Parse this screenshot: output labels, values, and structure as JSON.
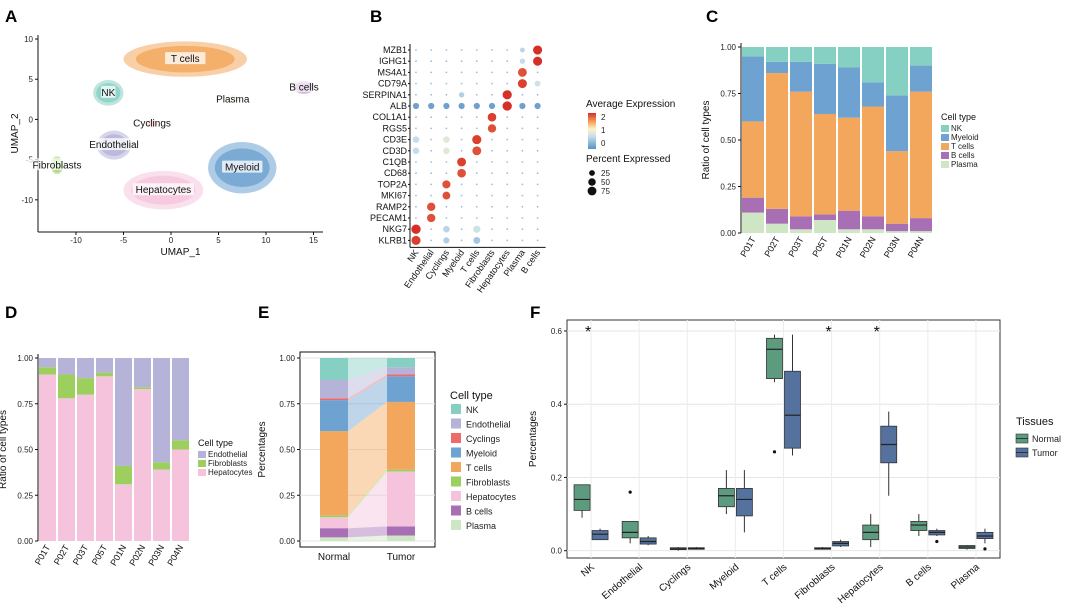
{
  "colors": {
    "NK": "#86cfc3",
    "Endothelial": "#b5b3d8",
    "Cyclings": "#ef6a6a",
    "Myeloid": "#6ea2d1",
    "T cells": "#f3a75c",
    "Fibroblasts": "#9ccf5e",
    "Hepatocytes": "#f5c4dc",
    "B cells": "#a86fb5",
    "Plasma": "#cfe6c4",
    "Normal": "#5d9b7e",
    "Tumor": "#55729f"
  },
  "panel_labels": [
    "A",
    "B",
    "C",
    "D",
    "E",
    "F"
  ],
  "chart_data": [
    {
      "id": "A",
      "type": "scatter",
      "title": "",
      "xlabel": "UMAP_1",
      "ylabel": "UMAP_2",
      "xlim": [
        -14,
        16
      ],
      "ylim": [
        -14,
        10.5
      ],
      "xticks": [
        -10,
        -5,
        0,
        5,
        10,
        15
      ],
      "yticks": [
        10,
        5,
        0,
        -5,
        -10
      ],
      "clusters": [
        {
          "name": "T cells",
          "cx": 1.5,
          "cy": 7.5,
          "rx": 6.5,
          "ry": 2.2
        },
        {
          "name": "NK",
          "cx": -6.6,
          "cy": 3.3,
          "rx": 1.6,
          "ry": 1.6
        },
        {
          "name": "B cells",
          "cx": 14.0,
          "cy": 4.0,
          "rx": 1.2,
          "ry": 0.8
        },
        {
          "name": "Plasma",
          "cx": 6.5,
          "cy": 2.5,
          "rx": 0.7,
          "ry": 0.6
        },
        {
          "name": "Cyclings",
          "cx": -2.0,
          "cy": -0.5,
          "rx": 0.6,
          "ry": 0.5
        },
        {
          "name": "Endothelial",
          "cx": -6.0,
          "cy": -3.2,
          "rx": 1.8,
          "ry": 1.8
        },
        {
          "name": "Fibroblasts",
          "cx": -12.0,
          "cy": -5.7,
          "rx": 0.7,
          "ry": 1.1
        },
        {
          "name": "Myeloid",
          "cx": 7.5,
          "cy": -6.0,
          "rx": 3.6,
          "ry": 3.2
        },
        {
          "name": "Hepatocytes",
          "cx": -0.8,
          "cy": -8.8,
          "rx": 4.2,
          "ry": 2.4
        }
      ]
    },
    {
      "id": "B",
      "type": "scatter",
      "title": "",
      "genes": [
        "MZB1",
        "IGHG1",
        "MS4A1",
        "CD79A",
        "SERPINA1",
        "ALB",
        "COL1A1",
        "RGS5",
        "CD3E",
        "CD3D",
        "C1QB",
        "CD68",
        "TOP2A",
        "MKI67",
        "RAMP2",
        "PECAM1",
        "NKG7",
        "KLRB1"
      ],
      "cell_types": [
        "NK",
        "Endothelial",
        "Cyclings",
        "Myeloid",
        "T cells",
        "Fibroblasts",
        "Hepatocytes",
        "Plasma",
        "B cells"
      ],
      "legend_expression_title": "Average Expression",
      "expression_ticks": [
        "2",
        "1",
        "0"
      ],
      "legend_percent_title": "Percent Expressed",
      "percent_ticks": [
        "25",
        "50",
        "75"
      ],
      "dots": [
        {
          "gene": "MZB1",
          "ct": "B cells",
          "expr": 2.2,
          "pct": 80
        },
        {
          "gene": "MZB1",
          "ct": "Plasma",
          "expr": 0.2,
          "pct": 15
        },
        {
          "gene": "IGHG1",
          "ct": "B cells",
          "expr": 2.2,
          "pct": 80
        },
        {
          "gene": "IGHG1",
          "ct": "Plasma",
          "expr": 0.3,
          "pct": 20
        },
        {
          "gene": "MS4A1",
          "ct": "Plasma",
          "expr": 2.0,
          "pct": 75
        },
        {
          "gene": "CD79A",
          "ct": "Plasma",
          "expr": 2.1,
          "pct": 78
        },
        {
          "gene": "CD79A",
          "ct": "B cells",
          "expr": 0.4,
          "pct": 25
        },
        {
          "gene": "SERPINA1",
          "ct": "Hepatocytes",
          "expr": 2.2,
          "pct": 82
        },
        {
          "gene": "SERPINA1",
          "ct": "Myeloid",
          "expr": 0.1,
          "pct": 20
        },
        {
          "gene": "ALB",
          "ct": "Hepatocytes",
          "expr": 2.2,
          "pct": 85
        },
        {
          "gene": "ALB",
          "ct": "NK",
          "expr": -0.5,
          "pct": 30
        },
        {
          "gene": "ALB",
          "ct": "Endothelial",
          "expr": -0.5,
          "pct": 30
        },
        {
          "gene": "ALB",
          "ct": "Cyclings",
          "expr": -0.5,
          "pct": 30
        },
        {
          "gene": "ALB",
          "ct": "Myeloid",
          "expr": -0.5,
          "pct": 30
        },
        {
          "gene": "ALB",
          "ct": "T cells",
          "expr": -0.5,
          "pct": 30
        },
        {
          "gene": "ALB",
          "ct": "Fibroblasts",
          "expr": -0.5,
          "pct": 30
        },
        {
          "gene": "ALB",
          "ct": "Plasma",
          "expr": -0.5,
          "pct": 30
        },
        {
          "gene": "ALB",
          "ct": "B cells",
          "expr": -0.5,
          "pct": 30
        },
        {
          "gene": "COL1A1",
          "ct": "Fibroblasts",
          "expr": 2.1,
          "pct": 70
        },
        {
          "gene": "RGS5",
          "ct": "Fibroblasts",
          "expr": 2.0,
          "pct": 65
        },
        {
          "gene": "CD3E",
          "ct": "T cells",
          "expr": 2.1,
          "pct": 80
        },
        {
          "gene": "CD3E",
          "ct": "NK",
          "expr": 0.3,
          "pct": 35
        },
        {
          "gene": "CD3E",
          "ct": "Cyclings",
          "expr": 0.6,
          "pct": 35
        },
        {
          "gene": "CD3D",
          "ct": "T cells",
          "expr": 2.0,
          "pct": 75
        },
        {
          "gene": "CD3D",
          "ct": "NK",
          "expr": 0.3,
          "pct": 35
        },
        {
          "gene": "CD3D",
          "ct": "Cyclings",
          "expr": 0.6,
          "pct": 35
        },
        {
          "gene": "C1QB",
          "ct": "Myeloid",
          "expr": 2.1,
          "pct": 75
        },
        {
          "gene": "CD68",
          "ct": "Myeloid",
          "expr": 2.0,
          "pct": 70
        },
        {
          "gene": "TOP2A",
          "ct": "Cyclings",
          "expr": 2.0,
          "pct": 60
        },
        {
          "gene": "MKI67",
          "ct": "Cyclings",
          "expr": 2.0,
          "pct": 55
        },
        {
          "gene": "RAMP2",
          "ct": "Endothelial",
          "expr": 2.0,
          "pct": 65
        },
        {
          "gene": "PECAM1",
          "ct": "Endothelial",
          "expr": 2.0,
          "pct": 65
        },
        {
          "gene": "NKG7",
          "ct": "NK",
          "expr": 2.2,
          "pct": 85
        },
        {
          "gene": "NKG7",
          "ct": "T cells",
          "expr": 0.4,
          "pct": 45
        },
        {
          "gene": "NKG7",
          "ct": "Cyclings",
          "expr": 0.2,
          "pct": 35
        },
        {
          "gene": "KLRB1",
          "ct": "NK",
          "expr": 2.1,
          "pct": 80
        },
        {
          "gene": "KLRB1",
          "ct": "T cells",
          "expr": 0.0,
          "pct": 40
        },
        {
          "gene": "KLRB1",
          "ct": "Cyclings",
          "expr": 0.1,
          "pct": 30
        }
      ]
    },
    {
      "id": "C",
      "type": "bar",
      "stacked": true,
      "ylabel": "Ratio of cell types",
      "legend_title": "Cell type",
      "ylim": [
        0,
        1
      ],
      "yticks": [
        "0.00",
        "0.25",
        "0.50",
        "0.75",
        "1.00"
      ],
      "categories": [
        "P01T",
        "P02T",
        "P03T",
        "P05T",
        "P01N",
        "P02N",
        "P03N",
        "P04N"
      ],
      "series": [
        {
          "name": "Plasma",
          "values": [
            0.11,
            0.05,
            0.02,
            0.07,
            0.02,
            0.02,
            0.01,
            0.01
          ]
        },
        {
          "name": "B cells",
          "values": [
            0.08,
            0.08,
            0.07,
            0.03,
            0.1,
            0.07,
            0.04,
            0.07
          ]
        },
        {
          "name": "T cells",
          "values": [
            0.41,
            0.73,
            0.67,
            0.54,
            0.5,
            0.59,
            0.39,
            0.68
          ]
        },
        {
          "name": "Myeloid",
          "values": [
            0.35,
            0.06,
            0.16,
            0.27,
            0.27,
            0.13,
            0.3,
            0.14
          ]
        },
        {
          "name": "NK",
          "values": [
            0.05,
            0.08,
            0.08,
            0.09,
            0.11,
            0.19,
            0.26,
            0.1
          ]
        }
      ],
      "legend": [
        "NK",
        "Myeloid",
        "T cells",
        "B cells",
        "Plasma"
      ]
    },
    {
      "id": "D",
      "type": "bar",
      "stacked": true,
      "ylabel": "Ratio of cell types",
      "legend_title": "Cell type",
      "ylim": [
        0,
        1
      ],
      "yticks": [
        "0.00",
        "0.25",
        "0.50",
        "0.75",
        "1.00"
      ],
      "categories": [
        "P01T",
        "P02T",
        "P03T",
        "P05T",
        "P01N",
        "P02N",
        "P03N",
        "P04N"
      ],
      "series": [
        {
          "name": "Hepatocytes",
          "values": [
            0.91,
            0.78,
            0.8,
            0.9,
            0.31,
            0.83,
            0.39,
            0.5
          ]
        },
        {
          "name": "Fibroblasts",
          "values": [
            0.04,
            0.13,
            0.09,
            0.02,
            0.1,
            0.01,
            0.04,
            0.05
          ]
        },
        {
          "name": "Endothelial",
          "values": [
            0.05,
            0.09,
            0.11,
            0.08,
            0.59,
            0.16,
            0.57,
            0.45
          ]
        }
      ],
      "legend": [
        "Endothelial",
        "Fibroblasts",
        "Hepatocytes"
      ]
    },
    {
      "id": "E",
      "type": "area",
      "ylabel": "Percentages",
      "legend_title": "Cell type",
      "ylim": [
        0,
        1
      ],
      "yticks": [
        "0.00",
        "0.25",
        "0.50",
        "0.75",
        "1.00"
      ],
      "categories": [
        "Normal",
        "Tumor"
      ],
      "series": [
        {
          "name": "Plasma",
          "values": [
            0.02,
            0.03
          ]
        },
        {
          "name": "B cells",
          "values": [
            0.05,
            0.05
          ]
        },
        {
          "name": "Hepatocytes",
          "values": [
            0.06,
            0.3
          ]
        },
        {
          "name": "Fibroblasts",
          "values": [
            0.01,
            0.01
          ]
        },
        {
          "name": "T cells",
          "values": [
            0.46,
            0.37
          ]
        },
        {
          "name": "Myeloid",
          "values": [
            0.17,
            0.14
          ]
        },
        {
          "name": "Cyclings",
          "values": [
            0.01,
            0.01
          ]
        },
        {
          "name": "Endothelial",
          "values": [
            0.1,
            0.04
          ]
        },
        {
          "name": "NK",
          "values": [
            0.12,
            0.05
          ]
        }
      ],
      "legend": [
        "NK",
        "Endothelial",
        "Cyclings",
        "Myeloid",
        "T cells",
        "Fibroblasts",
        "Hepatocytes",
        "B cells",
        "Plasma"
      ]
    },
    {
      "id": "F",
      "type": "box",
      "ylabel": "Percentages",
      "legend_title": "Tissues",
      "ylim": [
        -0.02,
        0.63
      ],
      "yticks": [
        "0.0",
        "0.2",
        "0.4",
        "0.6"
      ],
      "categories": [
        "NK",
        "Endothelial",
        "Cyclings",
        "Myeloid",
        "T cells",
        "Fibroblasts",
        "Hepatocytes",
        "B cells",
        "Plasma"
      ],
      "significance": [
        "*",
        "",
        "",
        "",
        "",
        "*",
        "*",
        "",
        ""
      ],
      "groups": [
        "Normal",
        "Tumor"
      ],
      "boxes": [
        {
          "ct": "NK",
          "group": "Normal",
          "min": 0.09,
          "q1": 0.11,
          "median": 0.14,
          "q3": 0.18,
          "max": 0.18,
          "outliers": []
        },
        {
          "ct": "NK",
          "group": "Tumor",
          "min": 0.03,
          "q1": 0.03,
          "median": 0.045,
          "q3": 0.055,
          "max": 0.06,
          "outliers": []
        },
        {
          "ct": "Endothelial",
          "group": "Normal",
          "min": 0.02,
          "q1": 0.035,
          "median": 0.05,
          "q3": 0.08,
          "max": 0.08,
          "outliers": [
            0.16
          ]
        },
        {
          "ct": "Endothelial",
          "group": "Tumor",
          "min": 0.015,
          "q1": 0.018,
          "median": 0.025,
          "q3": 0.035,
          "max": 0.04,
          "outliers": []
        },
        {
          "ct": "Cyclings",
          "group": "Normal",
          "min": 0.0,
          "q1": 0.003,
          "median": 0.005,
          "q3": 0.008,
          "max": 0.01,
          "outliers": []
        },
        {
          "ct": "Cyclings",
          "group": "Tumor",
          "min": 0.003,
          "q1": 0.004,
          "median": 0.006,
          "q3": 0.008,
          "max": 0.01,
          "outliers": []
        },
        {
          "ct": "Myeloid",
          "group": "Normal",
          "min": 0.1,
          "q1": 0.12,
          "median": 0.15,
          "q3": 0.17,
          "max": 0.22,
          "outliers": []
        },
        {
          "ct": "Myeloid",
          "group": "Tumor",
          "min": 0.05,
          "q1": 0.095,
          "median": 0.14,
          "q3": 0.17,
          "max": 0.22,
          "outliers": []
        },
        {
          "ct": "T cells",
          "group": "Normal",
          "min": 0.46,
          "q1": 0.47,
          "median": 0.55,
          "q3": 0.58,
          "max": 0.59,
          "outliers": [
            0.27
          ]
        },
        {
          "ct": "T cells",
          "group": "Tumor",
          "min": 0.26,
          "q1": 0.28,
          "median": 0.37,
          "q3": 0.49,
          "max": 0.59,
          "outliers": []
        },
        {
          "ct": "Fibroblasts",
          "group": "Normal",
          "min": 0.003,
          "q1": 0.004,
          "median": 0.006,
          "q3": 0.008,
          "max": 0.01,
          "outliers": []
        },
        {
          "ct": "Fibroblasts",
          "group": "Tumor",
          "min": 0.01,
          "q1": 0.013,
          "median": 0.02,
          "q3": 0.025,
          "max": 0.03,
          "outliers": []
        },
        {
          "ct": "Hepatocytes",
          "group": "Normal",
          "min": 0.01,
          "q1": 0.03,
          "median": 0.05,
          "q3": 0.07,
          "max": 0.1,
          "outliers": []
        },
        {
          "ct": "Hepatocytes",
          "group": "Tumor",
          "min": 0.15,
          "q1": 0.24,
          "median": 0.29,
          "q3": 0.34,
          "max": 0.38,
          "outliers": []
        },
        {
          "ct": "B cells",
          "group": "Normal",
          "min": 0.04,
          "q1": 0.055,
          "median": 0.07,
          "q3": 0.08,
          "max": 0.1,
          "outliers": []
        },
        {
          "ct": "B cells",
          "group": "Tumor",
          "min": 0.04,
          "q1": 0.043,
          "median": 0.05,
          "q3": 0.055,
          "max": 0.06,
          "outliers": [
            0.025
          ]
        },
        {
          "ct": "Plasma",
          "group": "Normal",
          "min": 0.003,
          "q1": 0.006,
          "median": 0.01,
          "q3": 0.014,
          "max": 0.015,
          "outliers": []
        },
        {
          "ct": "Plasma",
          "group": "Tumor",
          "min": 0.02,
          "q1": 0.033,
          "median": 0.04,
          "q3": 0.05,
          "max": 0.06,
          "outliers": [
            0.005
          ]
        }
      ]
    }
  ]
}
